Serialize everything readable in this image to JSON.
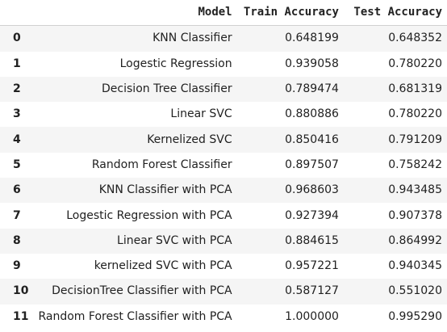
{
  "table": {
    "columns": [
      "",
      "Model",
      "Train Accuracy",
      "Test Accuracy"
    ],
    "rows": [
      {
        "index": "0",
        "model": "KNN Classifier",
        "train": "0.648199",
        "test": "0.648352"
      },
      {
        "index": "1",
        "model": "Logestic Regression",
        "train": "0.939058",
        "test": "0.780220"
      },
      {
        "index": "2",
        "model": "Decision Tree Classifier",
        "train": "0.789474",
        "test": "0.681319"
      },
      {
        "index": "3",
        "model": "Linear SVC",
        "train": "0.880886",
        "test": "0.780220"
      },
      {
        "index": "4",
        "model": "Kernelized SVC",
        "train": "0.850416",
        "test": "0.791209"
      },
      {
        "index": "5",
        "model": "Random Forest Classifier",
        "train": "0.897507",
        "test": "0.758242"
      },
      {
        "index": "6",
        "model": "KNN Classifier with PCA",
        "train": "0.968603",
        "test": "0.943485"
      },
      {
        "index": "7",
        "model": "Logestic Regression with PCA",
        "train": "0.927394",
        "test": "0.907378"
      },
      {
        "index": "8",
        "model": "Linear SVC with PCA",
        "train": "0.884615",
        "test": "0.864992"
      },
      {
        "index": "9",
        "model": "kernelized SVC with PCA",
        "train": "0.957221",
        "test": "0.940345"
      },
      {
        "index": "10",
        "model": "DecisionTree Classifier with PCA",
        "train": "0.587127",
        "test": "0.551020"
      },
      {
        "index": "11",
        "model": "Random Forest Classifier with PCA",
        "train": "1.000000",
        "test": "0.995290"
      }
    ]
  }
}
